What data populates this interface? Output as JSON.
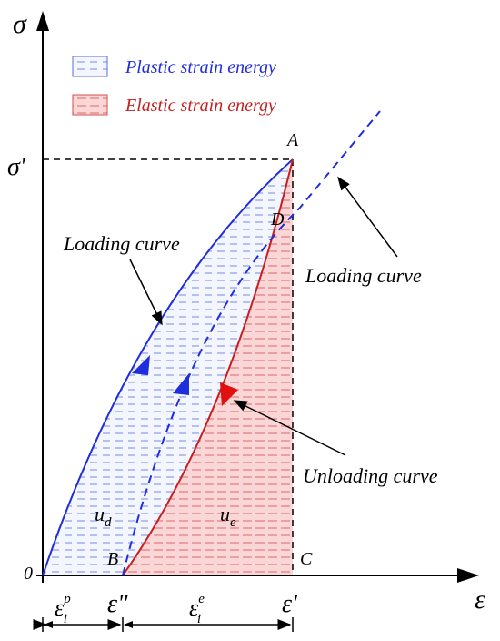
{
  "axes": {
    "y_label": "σ",
    "x_label": "ε",
    "origin": "0"
  },
  "legend": [
    {
      "label": "Plastic strain energy"
    },
    {
      "label": "Elastic strain energy"
    }
  ],
  "points": {
    "A": "A",
    "B": "B",
    "C": "C",
    "D": "D"
  },
  "marks": {
    "sigma_prime": "σ'",
    "epsilon_prime": "ε'",
    "epsilon_double_prime": "ε\""
  },
  "curves": {
    "loading_left": "Loading curve",
    "loading_right": "Loading curve",
    "unloading": "Unloading curve"
  },
  "energies": {
    "ud": {
      "base": "u",
      "sub": "d"
    },
    "ue": {
      "base": "u",
      "sub": "e"
    }
  },
  "strains": {
    "plastic": {
      "base": "ε",
      "sub": "i",
      "sup": "p"
    },
    "elastic": {
      "base": "ε",
      "sub": "i",
      "sup": "e"
    }
  }
}
